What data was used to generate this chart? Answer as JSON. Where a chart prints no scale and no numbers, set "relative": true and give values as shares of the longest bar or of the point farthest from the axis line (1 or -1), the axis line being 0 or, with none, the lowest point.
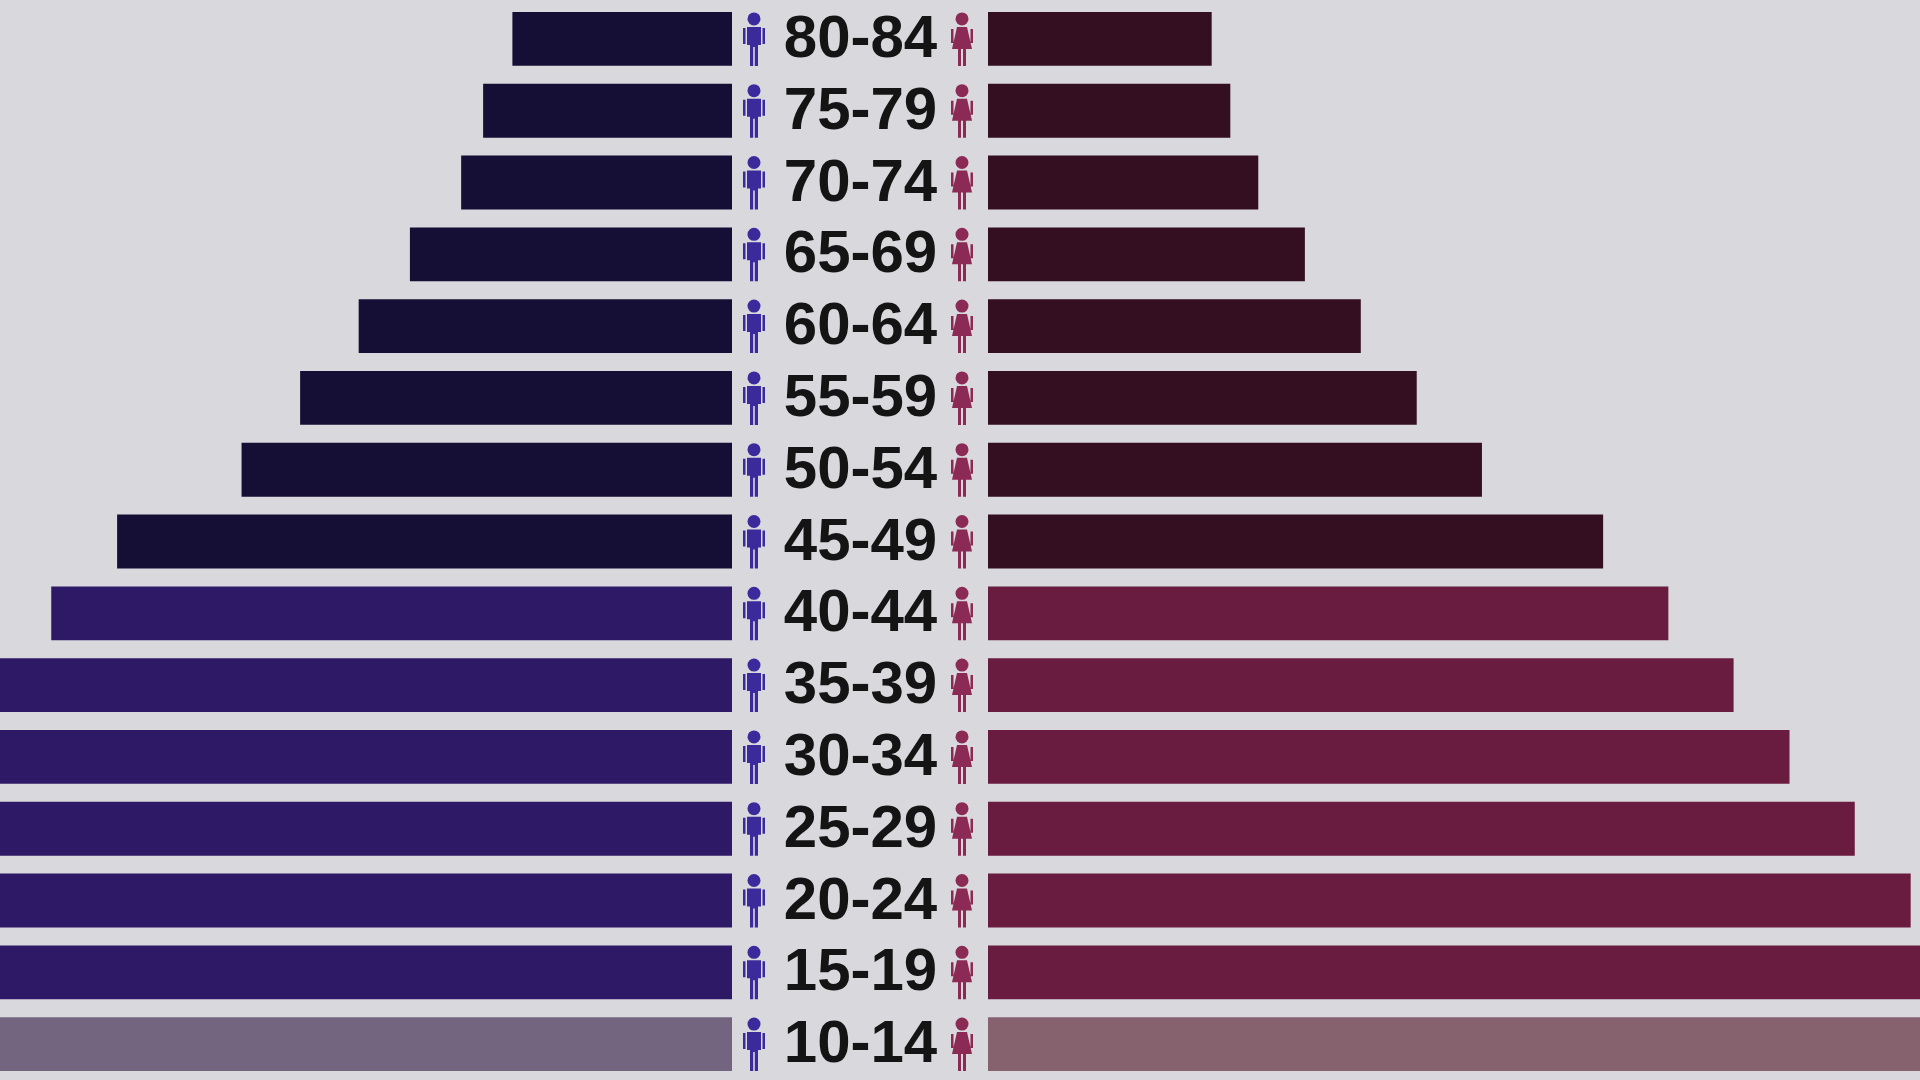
{
  "chart_data": [
    {
      "type": "bar",
      "orientation": "horizontal",
      "relative": true,
      "categories": [
        "80-84",
        "75-79",
        "70-74",
        "65-69",
        "60-64",
        "55-59",
        "50-54",
        "45-49",
        "40-44",
        "35-39",
        "30-34",
        "25-29",
        "20-24",
        "15-19",
        "10-14"
      ],
      "colors": [
        "#150e35",
        "#150e35",
        "#150e35",
        "#150e35",
        "#150e35",
        "#150e35",
        "#150e35",
        "#150e35",
        "#2e1966",
        "#2e1966",
        "#2e1966",
        "#2e1966",
        "#2e1966",
        "#2e1966",
        "#736480"
      ],
      "values": [
        0.3,
        0.34,
        0.37,
        0.44,
        0.51,
        0.59,
        0.67,
        0.84,
        0.93,
        1,
        1,
        1,
        1,
        1,
        1
      ]
    },
    {
      "type": "bar",
      "orientation": "horizontal",
      "relative": true,
      "categories": [
        null,
        null,
        null,
        null,
        null,
        null,
        null,
        null,
        null,
        null,
        null,
        null,
        null,
        null,
        null
      ],
      "colors": [
        "#340f22",
        "#340f22",
        "#340f22",
        "#340f22",
        "#340f22",
        "#340f22",
        "#340f22",
        "#340f22",
        "#691c3f",
        "#691c3f",
        "#691c3f",
        "#691c3f",
        "#691c3f",
        "#691c3f",
        "#86626f"
      ],
      "values": [
        0.24,
        0.26,
        0.29,
        0.34,
        0.4,
        0.46,
        0.53,
        0.66,
        0.73,
        0.8,
        0.86,
        0.93,
        0.99,
        1,
        1
      ]
    }
  ]
}
